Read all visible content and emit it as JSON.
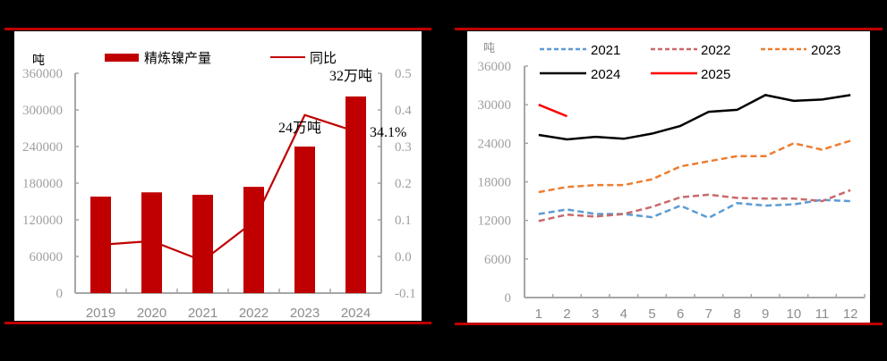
{
  "colors": {
    "frame_red": "#c00000",
    "bar_red": "#c00000",
    "yoy_line": "#c00000",
    "axis_grey": "#a6a6a6",
    "s2021": "#5b9bd5",
    "s2022": "#c9696b",
    "s2023": "#ed7d31",
    "s2024": "#000000",
    "s2025": "#ff0000"
  },
  "chart_data": [
    {
      "type": "bar",
      "title": "",
      "ylabel": "吨",
      "y2label": "",
      "legend": [
        "精炼镍产量",
        "同比"
      ],
      "legend_position": "top",
      "categories": [
        "2019",
        "2020",
        "2021",
        "2022",
        "2023",
        "2024"
      ],
      "series": [
        {
          "name": "精炼镍产量",
          "type": "bar",
          "axis": "left",
          "values": [
            158000,
            165000,
            161000,
            174000,
            240000,
            322000
          ]
        },
        {
          "name": "同比",
          "type": "line",
          "axis": "right",
          "values": [
            0.032,
            0.042,
            -0.012,
            0.095,
            0.386,
            0.341
          ]
        }
      ],
      "ylim": [
        0,
        360000
      ],
      "yticks": [
        "0",
        "60000",
        "120000",
        "180000",
        "240000",
        "300000",
        "360000"
      ],
      "y2lim": [
        -0.1,
        0.5
      ],
      "y2ticks": [
        "-0.1",
        "0.0",
        "0.1",
        "0.2",
        "0.3",
        "0.4",
        "0.5"
      ],
      "annotations": [
        "24万吨",
        "32万吨",
        "34.1%"
      ],
      "grid": false
    },
    {
      "type": "line",
      "title": "",
      "ylabel": "吨",
      "xlabel": "",
      "x": [
        "1",
        "2",
        "3",
        "4",
        "5",
        "6",
        "7",
        "8",
        "9",
        "10",
        "11",
        "12"
      ],
      "series": [
        {
          "name": "2021",
          "style": "dashed",
          "values": [
            13000,
            13700,
            13000,
            13000,
            12500,
            14300,
            12400,
            14700,
            14300,
            14500,
            15200,
            15000
          ]
        },
        {
          "name": "2022",
          "style": "dashed",
          "values": [
            11900,
            12900,
            12600,
            13000,
            14100,
            15600,
            16000,
            15500,
            15400,
            15400,
            15000,
            16700
          ]
        },
        {
          "name": "2023",
          "style": "dashed",
          "values": [
            16400,
            17200,
            17500,
            17500,
            18400,
            20400,
            21200,
            22000,
            22000,
            24000,
            23000,
            24400
          ]
        },
        {
          "name": "2024",
          "style": "solid",
          "values": [
            25300,
            24600,
            25000,
            24700,
            25500,
            26700,
            28900,
            29200,
            31500,
            30600,
            30800,
            31500
          ]
        },
        {
          "name": "2025",
          "style": "solid",
          "values": [
            30000,
            28200
          ]
        }
      ],
      "ylim": [
        0,
        36000
      ],
      "yticks": [
        "0",
        "6000",
        "12000",
        "18000",
        "24000",
        "30000",
        "36000"
      ],
      "legend_position": "top",
      "grid": false
    }
  ],
  "left_chart": {
    "unit": "吨",
    "legend_bar": "精炼镍产量",
    "legend_line": "同比",
    "yticks": [
      "360000",
      "300000",
      "240000",
      "180000",
      "120000",
      "60000",
      "0"
    ],
    "y2ticks": [
      "0.5",
      "0.4",
      "0.3",
      "0.2",
      "0.1",
      "0.0",
      "-0.1"
    ],
    "xticks": [
      "2019",
      "2020",
      "2021",
      "2022",
      "2023",
      "2024"
    ],
    "annot_2023": "24万吨",
    "annot_2024": "32万吨",
    "annot_yoy": "34.1%"
  },
  "right_chart": {
    "unit": "吨",
    "legend": [
      "2021",
      "2022",
      "2023",
      "2024",
      "2025"
    ],
    "yticks": [
      "36000",
      "30000",
      "24000",
      "18000",
      "12000",
      "6000",
      "0"
    ],
    "xticks": [
      "1",
      "2",
      "3",
      "4",
      "5",
      "6",
      "7",
      "8",
      "9",
      "10",
      "11",
      "12"
    ]
  }
}
